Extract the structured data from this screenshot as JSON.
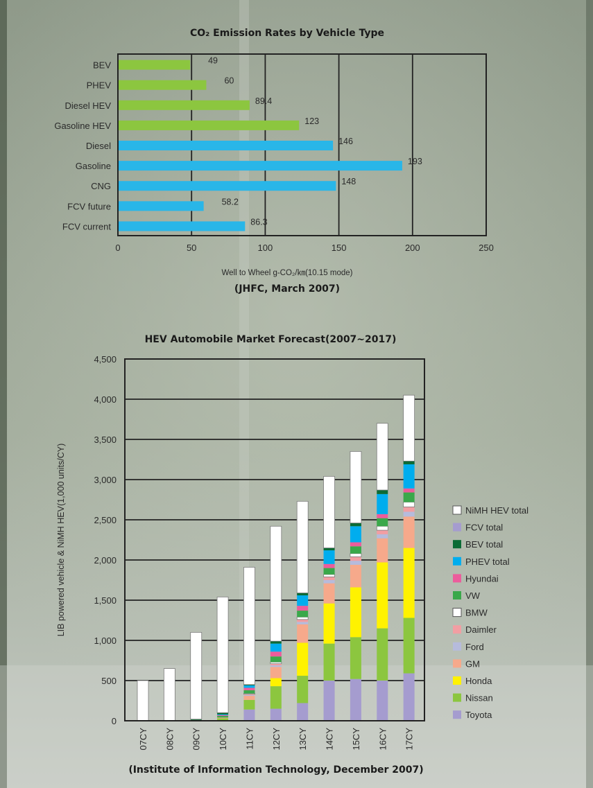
{
  "colors": {
    "ev_green": "#8cc63f",
    "ev_blue": "#29b6e8",
    "frame": "#222222"
  },
  "chart_data": [
    {
      "type": "bar",
      "orientation": "horizontal",
      "title": "CO₂ Emission Rates by Vehicle Type",
      "xlabel": "Well to Wheel g-CO₂/㎞(10.15 mode)",
      "source": "(JHFC, March 2007)",
      "xlim": [
        0,
        250
      ],
      "xticks": [
        "0",
        "50",
        "100",
        "150",
        "200",
        "250"
      ],
      "grid": "vertical",
      "categories": [
        "BEV",
        "PHEV",
        "Diesel HEV",
        "Gasoline HEV",
        "Diesel",
        "Gasoline",
        "CNG",
        "FCV future",
        "FCV current"
      ],
      "values": [
        49,
        60,
        89.4,
        123,
        146,
        193,
        148,
        58.2,
        86.3
      ],
      "value_labels": [
        "49",
        "60",
        "89.4",
        "123",
        "146",
        "193",
        "148",
        "58.2",
        "86.3"
      ],
      "bar_colors": [
        "#8cc63f",
        "#8cc63f",
        "#8cc63f",
        "#8cc63f",
        "#29b6e8",
        "#29b6e8",
        "#29b6e8",
        "#29b6e8",
        "#29b6e8"
      ]
    },
    {
      "type": "bar",
      "stacked": true,
      "title": "HEV Automobile Market Forecast(2007~2017)",
      "ylabel": "LIB powered vehicle & NiMH HEV(1,000 units/CY)",
      "source": "(Institute of Information Technology, December 2007)",
      "ylim": [
        0,
        4500
      ],
      "yticks": [
        "0",
        "500",
        "1,000",
        "1,500",
        "2,000",
        "2,500",
        "3,000",
        "3,500",
        "4,000",
        "4,500"
      ],
      "grid": "horizontal",
      "legend_position": "right",
      "categories": [
        "07CY",
        "08CY",
        "09CY",
        "10CY",
        "11CY",
        "12CY",
        "13CY",
        "14CY",
        "15CY",
        "16CY",
        "17CY"
      ],
      "series": [
        {
          "name": "Toyota",
          "color": "#a59ccf",
          "values": [
            0,
            0,
            0,
            0,
            140,
            150,
            220,
            500,
            520,
            500,
            590
          ]
        },
        {
          "name": "Nissan",
          "color": "#8cc63f",
          "values": [
            0,
            0,
            0,
            30,
            120,
            280,
            340,
            460,
            520,
            650,
            690
          ]
        },
        {
          "name": "Honda",
          "color": "#fff200",
          "values": [
            0,
            0,
            0,
            0,
            0,
            100,
            410,
            500,
            620,
            820,
            870
          ]
        },
        {
          "name": "GM",
          "color": "#f6a98b",
          "values": [
            0,
            0,
            0,
            10,
            50,
            140,
            230,
            250,
            280,
            300,
            390
          ]
        },
        {
          "name": "Ford",
          "color": "#b6bbdc",
          "values": [
            0,
            0,
            0,
            0,
            10,
            20,
            30,
            40,
            50,
            50,
            60
          ]
        },
        {
          "name": "Daimler",
          "color": "#f29ea3",
          "values": [
            0,
            0,
            0,
            0,
            10,
            20,
            30,
            40,
            50,
            50,
            60
          ]
        },
        {
          "name": "BMW",
          "color": "#ffffff",
          "values": [
            0,
            0,
            0,
            0,
            10,
            20,
            30,
            30,
            40,
            50,
            60
          ]
        },
        {
          "name": "VW",
          "color": "#3aa84a",
          "values": [
            0,
            0,
            10,
            20,
            40,
            70,
            80,
            80,
            90,
            100,
            120
          ]
        },
        {
          "name": "Hyundai",
          "color": "#ec5c9c",
          "values": [
            0,
            0,
            0,
            10,
            30,
            60,
            60,
            50,
            50,
            50,
            50
          ]
        },
        {
          "name": "PHEV total",
          "color": "#00adee",
          "values": [
            0,
            0,
            0,
            10,
            30,
            100,
            130,
            170,
            200,
            250,
            300
          ]
        },
        {
          "name": "BEV total",
          "color": "#0b6b35",
          "values": [
            0,
            0,
            10,
            20,
            10,
            30,
            30,
            30,
            40,
            50,
            40
          ]
        },
        {
          "name": "FCV total",
          "color": "#a59ccf",
          "values": [
            0,
            0,
            0,
            0,
            0,
            0,
            0,
            0,
            0,
            0,
            0
          ]
        },
        {
          "name": "NiMH HEV total",
          "color": "#ffffff",
          "values": [
            500,
            650,
            1080,
            1440,
            1460,
            1430,
            1140,
            890,
            890,
            830,
            820
          ]
        }
      ],
      "legend_order": [
        "NiMH HEV total",
        "FCV total",
        "BEV total",
        "PHEV total",
        "Hyundai",
        "VW",
        "BMW",
        "Daimler",
        "Ford",
        "GM",
        "Honda",
        "Nissan",
        "Toyota"
      ]
    }
  ]
}
